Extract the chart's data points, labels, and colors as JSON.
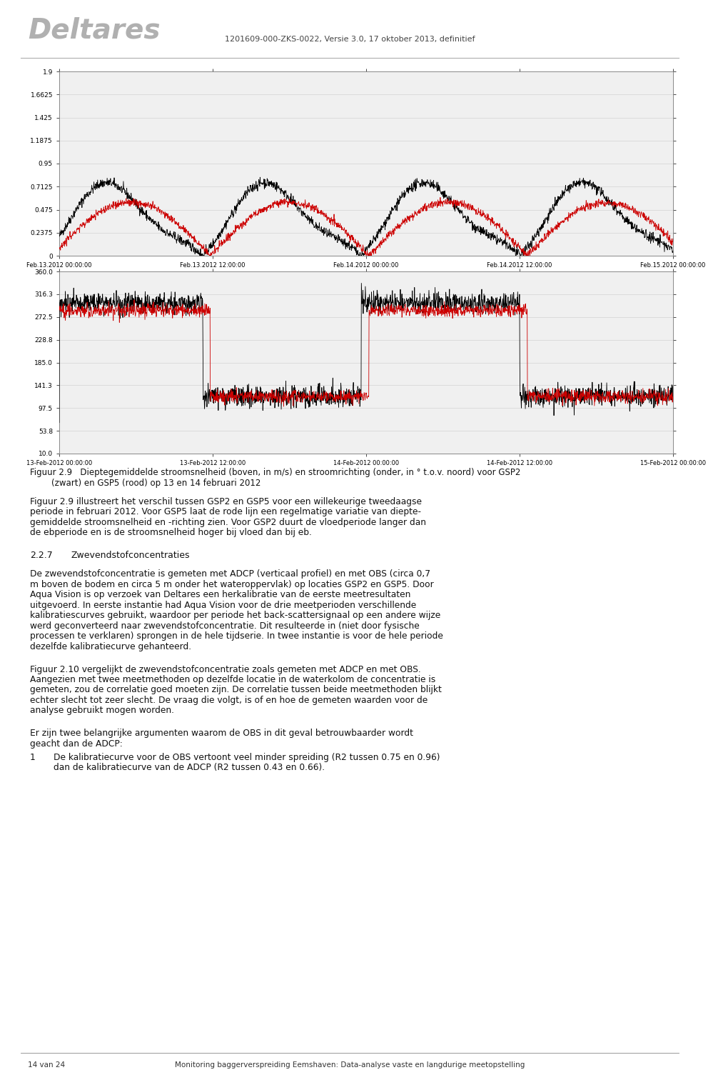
{
  "header_logo_text": "Deltares",
  "header_right_text": "1201609-000-ZKS-0022, Versie 3.0, 17 oktober 2013, definitief",
  "chart1_yticks": [
    0,
    0.2375,
    0.475,
    0.7125,
    0.95,
    1.1875,
    1.425,
    1.6625,
    1.9
  ],
  "chart1_ytick_labels": [
    "0",
    "0.2375",
    "0.475",
    "0.7125",
    "0.95",
    "1.1875",
    "1.425",
    "1.6625",
    "1.9"
  ],
  "chart1_ylim": [
    0,
    1.9
  ],
  "chart1_xtick_labels": [
    "Feb.13.2012 00:00:00",
    "Feb.13.2012 12:00:00",
    "Feb.14.2012 00:00:00",
    "Feb.14.2012 12:00:00",
    "Feb.15.2012 00:00:00"
  ],
  "chart2_yticks": [
    10.0,
    53.8,
    97.5,
    141.3,
    185.0,
    228.8,
    272.5,
    316.3,
    360.0
  ],
  "chart2_ytick_labels": [
    "10.0",
    "53.8",
    "97.5",
    "141.3",
    "185.0",
    "228.8",
    "272.5",
    "316.3",
    "360.0"
  ],
  "chart2_ylim": [
    10.0,
    360.0
  ],
  "chart2_xtick_labels": [
    "13-Feb-2012 00:00:00",
    "13-Feb-2012 12:00:00",
    "14-Feb-2012 00:00:00",
    "14-Feb-2012 12:00:00",
    "15-Feb-2012 00:00:00"
  ],
  "caption_line1": "Figuur 2.9   Dieptegemiddelde stroomsnelheid (boven, in m/s) en stroomrichting (onder, in ° t.o.v. noord) voor GSP2",
  "caption_line2": "        (zwart) en GSP5 (rood) op 13 en 14 februari 2012",
  "para1_lines": [
    "Figuur 2.9 illustreert het verschil tussen GSP2 en GSP5 voor een willekeurige tweedaagse",
    "periode in februari 2012. Voor GSP5 laat de rode lijn een regelmatige variatie van diepte-",
    "gemiddelde stroomsnelheid en -richting zien. Voor GSP2 duurt de vloedperiode langer dan",
    "de ebperiode en is de stroomsnelheid hoger bij vloed dan bij eb."
  ],
  "section227_label": "2.2.7",
  "section227_heading": "Zwevendstofconcentraties",
  "body227_lines": [
    "De zwevendstofconcentratie is gemeten met ADCP (verticaal profiel) en met OBS (circa 0,7",
    "m boven de bodem en circa 5 m onder het wateroppervlak) op locaties GSP2 en GSP5. Door",
    "Aqua Vision is op verzoek van Deltares een herkalibratie van de eerste meetresultaten",
    "uitgevoerd. In eerste instantie had Aqua Vision voor de drie meetperioden verschillende",
    "kalibratiescurves gebruikt, waardoor per periode het back-scattersignaal op een andere wijze",
    "werd geconverteerd naar zwevendstofconcentratie. Dit resulteerde in (niet door fysische",
    "processen te verklaren) sprongen in de hele tijdserie. In twee instantie is voor de hele periode",
    "dezelfde kalibratiecurve gehanteerd."
  ],
  "para2_lines": [
    "Figuur 2.10 vergelijkt de zwevendstofconcentratie zoals gemeten met ADCP en met OBS.",
    "Aangezien met twee meetmethoden op dezelfde locatie in de waterkolom de concentratie is",
    "gemeten, zou de correlatie goed moeten zijn. De correlatie tussen beide meetmethoden blijkt",
    "echter slecht tot zeer slecht. De vraag die volgt, is of en hoe de gemeten waarden voor de",
    "analyse gebruikt mogen worden."
  ],
  "para3_lines": [
    "Er zijn twee belangrijke argumenten waarom de OBS in dit geval betrouwbaarder wordt",
    "geacht dan de ADCP:"
  ],
  "bullet_num": "1",
  "bullet_line1": "De kalibratiecurve voor de OBS vertoont veel minder spreiding (R2 tussen 0.75 en 0.96)",
  "bullet_line2": "dan de kalibratiecurve van de ADCP (R2 tussen 0.43 en 0.66).",
  "footer_left": "14 van 24",
  "footer_center": "Monitoring baggerverspreiding Eemshaven: Data-analyse vaste en langdurige meetopstelling",
  "bg": "#ffffff",
  "black_line": "#000000",
  "red_line": "#cc0000"
}
